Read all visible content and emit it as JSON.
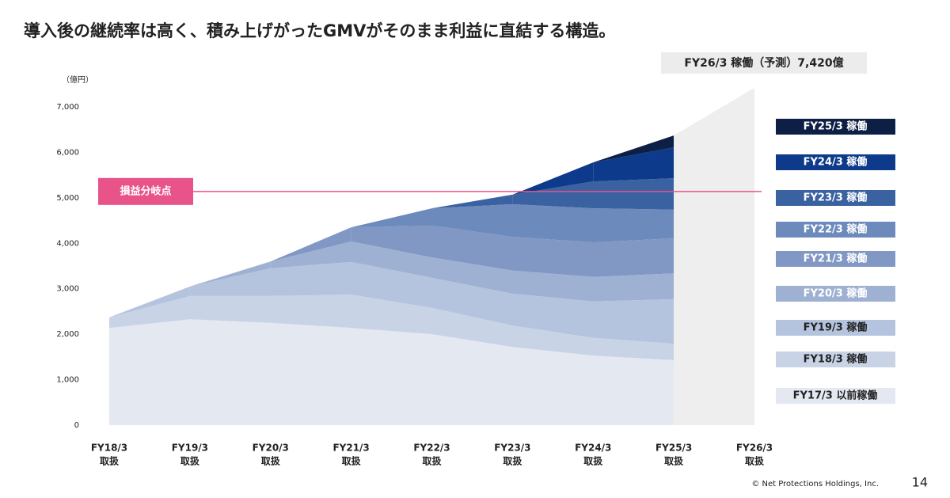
{
  "chart_data": {
    "type": "stacked_area",
    "title": "導入後の継続率は高く、積み上げがったGMVがそのまま利益に直結する構造。",
    "y_unit": "（億円）",
    "categories": [
      "FY18/3",
      "FY19/3",
      "FY20/3",
      "FY21/3",
      "FY22/3",
      "FY23/3",
      "FY24/3",
      "FY25/3",
      "FY26/3"
    ],
    "category_suffix": "取扱",
    "ylim": [
      0,
      7000
    ],
    "yticks": [
      0,
      {
        "value": 1000,
        "label": "1,000"
      },
      {
        "value": 2000,
        "label": "2,000"
      },
      {
        "value": 3000,
        "label": "3,000"
      },
      {
        "value": 4000,
        "label": "4,000"
      },
      {
        "value": 5000,
        "label": "5,000"
      },
      {
        "value": 6000,
        "label": "6,000"
      },
      {
        "value": 7000,
        "label": "7,000"
      }
    ],
    "series": [
      {
        "name": "FY17/3 以前稼働",
        "color": "#e3e8f1",
        "values": [
          2140,
          2330,
          2250,
          2140,
          2000,
          1720,
          1530,
          1430,
          null
        ]
      },
      {
        "name": "FY18/3 稼働",
        "color": "#c8d3e6",
        "values": [
          230,
          510,
          590,
          730,
          580,
          470,
          390,
          360,
          null
        ]
      },
      {
        "name": "FY19/3 稼働",
        "color": "#b5c4de",
        "values": [
          null,
          210,
          610,
          720,
          660,
          700,
          800,
          980,
          null
        ]
      },
      {
        "name": "FY20/3 稼働",
        "color": "#9fb1d2",
        "values": [
          null,
          null,
          150,
          450,
          450,
          510,
          540,
          570,
          null
        ]
      },
      {
        "name": "FY21/3 稼働",
        "color": "#8198c4",
        "values": [
          null,
          null,
          null,
          310,
          700,
          740,
          760,
          770,
          null
        ]
      },
      {
        "name": "FY22/3 稼働",
        "color": "#6c8abc",
        "values": [
          null,
          null,
          null,
          null,
          380,
          720,
          750,
          630,
          null
        ]
      },
      {
        "name": "FY23/3 稼働",
        "color": "#3a62a1",
        "values": [
          null,
          null,
          null,
          null,
          null,
          210,
          590,
          690,
          null
        ]
      },
      {
        "name": "FY24/3 稼働",
        "color": "#0d3a8a",
        "values": [
          null,
          null,
          null,
          null,
          null,
          null,
          420,
          680,
          null
        ]
      },
      {
        "name": "FY25/3 稼働",
        "color": "#0d1f45",
        "values": [
          null,
          null,
          null,
          null,
          null,
          null,
          null,
          260,
          null
        ]
      }
    ],
    "forecast": {
      "value": 7420,
      "label": "FY26/3 稼働（予測）7,420億",
      "color": "#eeeeee"
    },
    "break_even": {
      "value": 5140,
      "label": "損益分岐点",
      "color": "#e8538a"
    },
    "footer": "© Net Protections Holdings, Inc.",
    "page_number": "14"
  }
}
